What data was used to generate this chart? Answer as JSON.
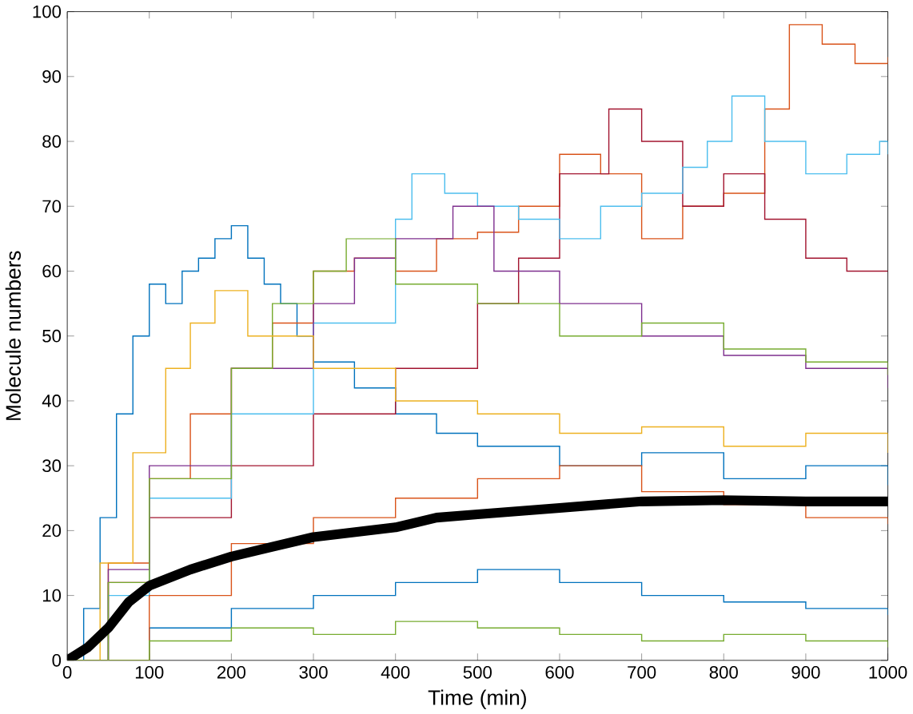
{
  "chart_data": {
    "type": "step",
    "xlabel": "Time (min)",
    "ylabel": "Molecule numbers",
    "xlim": [
      0,
      1000
    ],
    "ylim": [
      0,
      100
    ],
    "xticks": [
      0,
      100,
      200,
      300,
      400,
      500,
      600,
      700,
      800,
      900,
      1000
    ],
    "yticks": [
      0,
      10,
      20,
      30,
      40,
      50,
      60,
      70,
      80,
      90,
      100
    ],
    "series": [
      {
        "color": "#0072bd",
        "x": [
          0,
          20,
          40,
          60,
          80,
          100,
          120,
          140,
          160,
          180,
          200,
          220,
          240,
          260,
          280,
          300,
          350,
          400,
          450,
          500,
          600,
          700,
          800,
          900,
          1000
        ],
        "values": [
          0,
          8,
          22,
          38,
          50,
          58,
          55,
          60,
          62,
          65,
          67,
          62,
          58,
          55,
          50,
          46,
          42,
          38,
          35,
          33,
          30,
          32,
          28,
          30,
          27
        ]
      },
      {
        "color": "#d95319",
        "x": [
          0,
          50,
          100,
          150,
          200,
          250,
          300,
          350,
          400,
          450,
          500,
          550,
          600,
          650,
          700,
          750,
          800,
          850,
          880,
          920,
          960,
          1000
        ],
        "values": [
          0,
          15,
          28,
          38,
          45,
          52,
          60,
          62,
          60,
          65,
          66,
          70,
          78,
          75,
          65,
          70,
          72,
          85,
          98,
          95,
          92,
          93
        ]
      },
      {
        "color": "#a2142f",
        "x": [
          0,
          50,
          100,
          200,
          300,
          400,
          500,
          550,
          600,
          660,
          700,
          750,
          800,
          850,
          900,
          950,
          1000
        ],
        "values": [
          0,
          12,
          22,
          30,
          38,
          45,
          55,
          62,
          75,
          85,
          80,
          70,
          75,
          68,
          62,
          60,
          60
        ]
      },
      {
        "color": "#4dbeee",
        "x": [
          0,
          50,
          100,
          200,
          300,
          400,
          420,
          460,
          500,
          550,
          600,
          650,
          700,
          750,
          780,
          810,
          850,
          900,
          950,
          990,
          1000
        ],
        "values": [
          0,
          10,
          25,
          38,
          52,
          68,
          75,
          72,
          70,
          68,
          65,
          70,
          72,
          76,
          80,
          87,
          80,
          75,
          78,
          80,
          78
        ]
      },
      {
        "color": "#7e2f8e",
        "x": [
          0,
          50,
          100,
          200,
          300,
          350,
          400,
          470,
          520,
          600,
          700,
          800,
          900,
          1000
        ],
        "values": [
          0,
          14,
          30,
          45,
          55,
          62,
          65,
          70,
          60,
          55,
          50,
          47,
          45,
          42
        ]
      },
      {
        "color": "#77ac30",
        "x": [
          0,
          50,
          100,
          200,
          250,
          300,
          340,
          400,
          500,
          600,
          700,
          800,
          900,
          1000
        ],
        "values": [
          0,
          12,
          28,
          45,
          55,
          60,
          65,
          58,
          55,
          50,
          52,
          48,
          46,
          44
        ]
      },
      {
        "color": "#edb120",
        "x": [
          0,
          40,
          80,
          120,
          150,
          180,
          220,
          300,
          400,
          500,
          600,
          700,
          800,
          900,
          1000
        ],
        "values": [
          0,
          15,
          32,
          45,
          52,
          57,
          50,
          45,
          40,
          38,
          35,
          36,
          33,
          35,
          32
        ]
      },
      {
        "color": "#0072bd",
        "x": [
          0,
          100,
          200,
          300,
          400,
          500,
          600,
          700,
          800,
          900,
          1000
        ],
        "values": [
          0,
          5,
          8,
          10,
          12,
          14,
          12,
          10,
          9,
          8,
          7
        ]
      },
      {
        "color": "#d95319",
        "x": [
          0,
          100,
          200,
          300,
          400,
          500,
          600,
          700,
          800,
          900,
          1000
        ],
        "values": [
          0,
          10,
          18,
          22,
          25,
          28,
          30,
          26,
          24,
          22,
          21
        ]
      },
      {
        "color": "#77ac30",
        "x": [
          0,
          100,
          200,
          300,
          400,
          500,
          600,
          700,
          800,
          900,
          1000
        ],
        "values": [
          0,
          3,
          5,
          4,
          6,
          5,
          4,
          3,
          4,
          3,
          2
        ]
      },
      {
        "color": "#000000",
        "type": "line",
        "x": [
          0,
          25,
          50,
          75,
          100,
          150,
          200,
          250,
          300,
          400,
          450,
          500,
          600,
          700,
          800,
          900,
          1000
        ],
        "values": [
          0,
          2,
          5,
          9,
          11.5,
          14,
          16,
          17.5,
          19,
          20.5,
          22,
          22.5,
          23.5,
          24.5,
          24.7,
          24.5,
          24.5
        ]
      }
    ]
  }
}
